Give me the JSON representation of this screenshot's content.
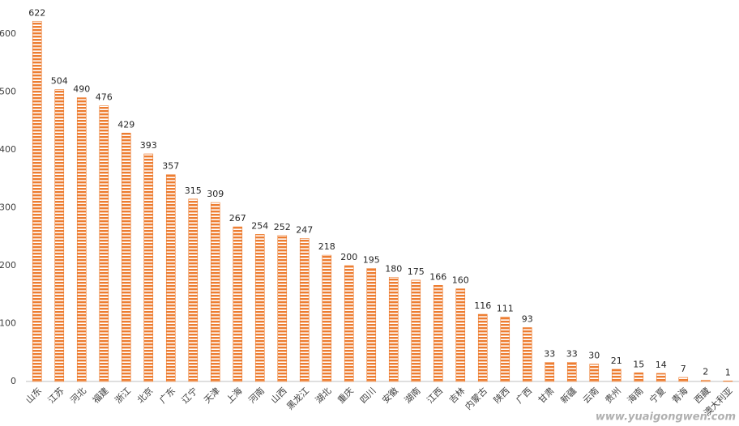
{
  "chart_data": {
    "type": "bar",
    "categories": [
      "山东",
      "江苏",
      "河北",
      "福建",
      "浙江",
      "北京",
      "广东",
      "辽宁",
      "天津",
      "上海",
      "河南",
      "山西",
      "黑龙江",
      "湖北",
      "重庆",
      "四川",
      "安徽",
      "湖南",
      "江西",
      "吉林",
      "内蒙古",
      "陕西",
      "广西",
      "甘肃",
      "新疆",
      "云南",
      "贵州",
      "海南",
      "宁夏",
      "青海",
      "西藏",
      "澳大利亚"
    ],
    "values": [
      622,
      504,
      490,
      476,
      429,
      393,
      357,
      315,
      309,
      267,
      254,
      252,
      247,
      218,
      200,
      195,
      180,
      175,
      166,
      160,
      116,
      111,
      93,
      33,
      33,
      30,
      21,
      15,
      14,
      7,
      2,
      1
    ],
    "color": "#ed7d31",
    "hatched": true,
    "ylim": [
      0,
      650
    ],
    "yticks": [
      0,
      100,
      200,
      300,
      400,
      500,
      600
    ],
    "grid": false,
    "watermark": "www.yuaigongwen.com"
  }
}
